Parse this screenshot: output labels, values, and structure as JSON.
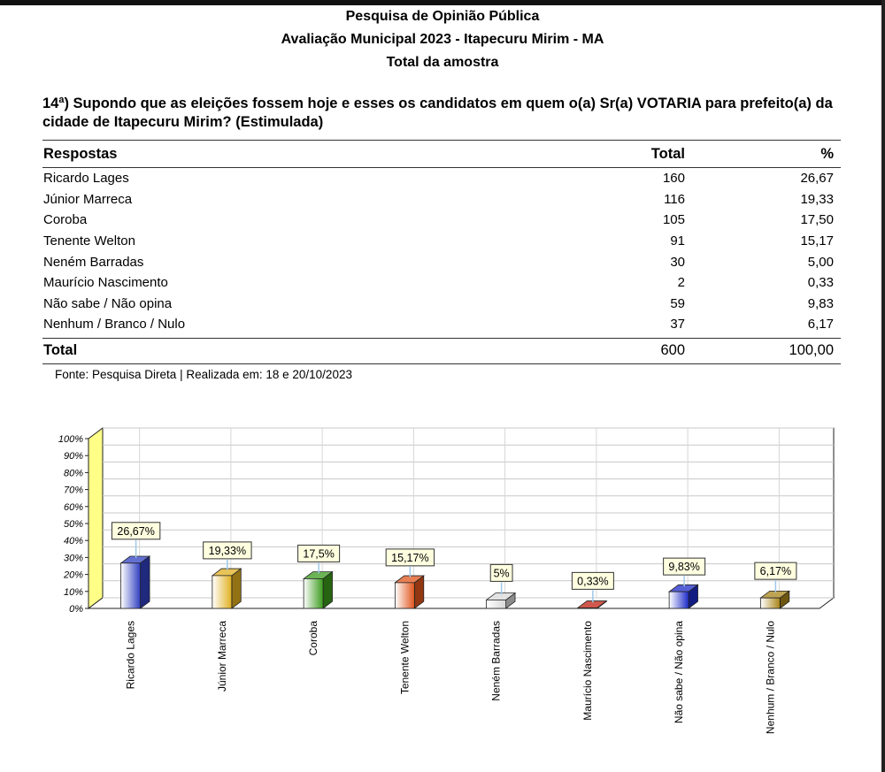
{
  "header": {
    "line1": "Pesquisa de Opinião Pública",
    "line2": "Avaliação Municipal 2023 -  Itapecuru Mirim - MA",
    "line3": "Total da amostra"
  },
  "question": "14ª) Supondo que as eleições fossem hoje e esses os candidatos em quem o(a) Sr(a) VOTARIA para prefeito(a) da cidade de Itapecuru Mirim? (Estimulada)",
  "table": {
    "headers": [
      "Respostas",
      "Total",
      "%"
    ],
    "rows": [
      {
        "label": "Ricardo Lages",
        "total": "160",
        "pct": "26,67"
      },
      {
        "label": "Júnior Marreca",
        "total": "116",
        "pct": "19,33"
      },
      {
        "label": "Coroba",
        "total": "105",
        "pct": "17,50"
      },
      {
        "label": "Tenente Welton",
        "total": "91",
        "pct": "15,17"
      },
      {
        "label": "Neném Barradas",
        "total": "30",
        "pct": "5,00"
      },
      {
        "label": "Maurício Nascimento",
        "total": "2",
        "pct": "0,33"
      },
      {
        "label": "Não sabe / Não opina",
        "total": "59",
        "pct": "9,83"
      },
      {
        "label": "Nenhum / Branco / Nulo",
        "total": "37",
        "pct": "6,17"
      }
    ],
    "total": {
      "label": "Total",
      "total": "600",
      "pct": "100,00"
    }
  },
  "source": "Fonte: Pesquisa Direta  |  Realizada em: 18 e  20/10/2023",
  "chart_data": {
    "type": "bar",
    "categories": [
      "Ricardo Lages",
      "Júnior Marreca",
      "Coroba",
      "Tenente Welton",
      "Neném Barradas",
      "Maurício Nascimento",
      "Não sabe / Não opina",
      "Nenhum / Branco / Nulo"
    ],
    "values": [
      26.67,
      19.33,
      17.5,
      15.17,
      5,
      0.33,
      9.83,
      6.17
    ],
    "data_labels": [
      "26,67%",
      "19,33%",
      "17,5%",
      "15,17%",
      "5%",
      "0,33%",
      "9,83%",
      "6,17%"
    ],
    "colors": [
      "#2f3fc0",
      "#e0b020",
      "#3a9a1c",
      "#e0541c",
      "#d8d8d8",
      "#c02010",
      "#1c2ac8",
      "#a88418"
    ],
    "yticks": [
      "0%",
      "10%",
      "20%",
      "30%",
      "40%",
      "50%",
      "60%",
      "70%",
      "80%",
      "90%",
      "100%"
    ],
    "ylim": [
      0,
      100
    ],
    "grid": true,
    "wall_color": "#ffff88",
    "label_bg": "#ffffe0"
  }
}
